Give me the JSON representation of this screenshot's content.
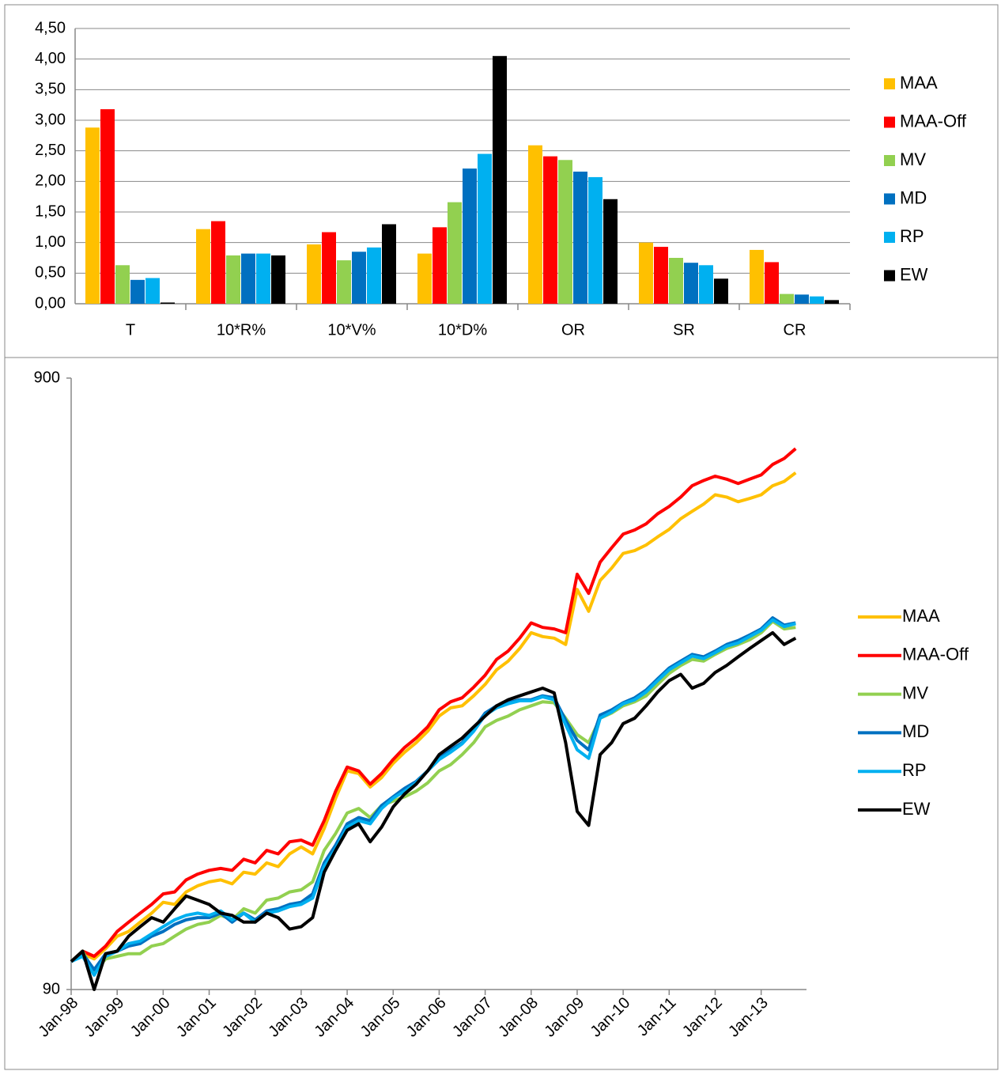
{
  "chart_data": [
    {
      "type": "bar",
      "categories": [
        "T",
        "10*R%",
        "10*V%",
        "10*D%",
        "OR",
        "SR",
        "CR"
      ],
      "series": [
        {
          "name": "MAA",
          "color": "#ffc000",
          "values": [
            2.88,
            1.22,
            0.97,
            0.82,
            2.59,
            1.0,
            0.88
          ]
        },
        {
          "name": "MAA-Off",
          "color": "#ff0000",
          "values": [
            3.18,
            1.35,
            1.17,
            1.25,
            2.41,
            0.93,
            0.68
          ]
        },
        {
          "name": "MV",
          "color": "#92d050",
          "values": [
            0.63,
            0.79,
            0.71,
            1.66,
            2.35,
            0.75,
            0.16
          ]
        },
        {
          "name": "MD",
          "color": "#0070c0",
          "values": [
            0.39,
            0.82,
            0.85,
            2.21,
            2.16,
            0.67,
            0.15
          ]
        },
        {
          "name": "RP",
          "color": "#00b0f0",
          "values": [
            0.42,
            0.82,
            0.92,
            2.45,
            2.07,
            0.63,
            0.12
          ]
        },
        {
          "name": "EW",
          "color": "#000000",
          "values": [
            0.02,
            0.79,
            1.3,
            4.05,
            1.71,
            0.41,
            0.06
          ]
        }
      ],
      "ylim": [
        0,
        4.5
      ],
      "yticks": [
        {
          "value": 0,
          "label": "0,00"
        },
        {
          "value": 0.5,
          "label": "0,50"
        },
        {
          "value": 1,
          "label": "1,00"
        },
        {
          "value": 1.5,
          "label": "1,50"
        },
        {
          "value": 2,
          "label": "2,00"
        },
        {
          "value": 2.5,
          "label": "2,50"
        },
        {
          "value": 3,
          "label": "3,00"
        },
        {
          "value": 3.5,
          "label": "3,50"
        },
        {
          "value": 4,
          "label": "4,00"
        },
        {
          "value": 4.5,
          "label": "4,50"
        }
      ],
      "grid": true,
      "legend": "right"
    },
    {
      "type": "line",
      "x": [
        "1998-01",
        "1998-04",
        "1998-07",
        "1998-10",
        "1999-01",
        "1999-04",
        "1999-07",
        "1999-10",
        "2000-01",
        "2000-04",
        "2000-07",
        "2000-10",
        "2001-01",
        "2001-04",
        "2001-07",
        "2001-10",
        "2002-01",
        "2002-04",
        "2002-07",
        "2002-10",
        "2003-01",
        "2003-04",
        "2003-07",
        "2003-10",
        "2004-01",
        "2004-04",
        "2004-07",
        "2004-10",
        "2005-01",
        "2005-04",
        "2005-07",
        "2005-10",
        "2006-01",
        "2006-04",
        "2006-07",
        "2006-10",
        "2007-01",
        "2007-04",
        "2007-07",
        "2007-10",
        "2008-01",
        "2008-04",
        "2008-07",
        "2008-10",
        "2009-01",
        "2009-04",
        "2009-07",
        "2009-10",
        "2010-01",
        "2010-04",
        "2010-07",
        "2010-10",
        "2011-01",
        "2011-04",
        "2011-07",
        "2011-10",
        "2012-01",
        "2012-04",
        "2012-07",
        "2012-10",
        "2013-01",
        "2013-04",
        "2013-07",
        "2013-10"
      ],
      "series": [
        {
          "name": "MAA",
          "color": "#ffc000",
          "values": [
            100,
            103,
            101,
            105,
            110,
            112,
            116,
            120,
            125,
            124,
            130,
            133,
            135,
            136,
            134,
            140,
            139,
            145,
            143,
            150,
            154,
            150,
            165,
            185,
            205,
            203,
            193,
            200,
            211,
            220,
            228,
            238,
            252,
            260,
            262,
            272,
            284,
            300,
            310,
            325,
            345,
            340,
            338,
            330,
            406,
            374,
            420,
            440,
            465,
            470,
            480,
            495,
            509,
            530,
            545,
            560,
            580,
            575,
            565,
            572,
            580,
            600,
            610,
            630
          ]
        },
        {
          "name": "MAA-Off",
          "color": "#ff0000",
          "values": [
            100,
            104,
            102,
            106,
            112,
            116,
            120,
            124,
            129,
            130,
            136,
            139,
            141,
            142,
            141,
            147,
            145,
            152,
            150,
            157,
            158,
            155,
            170,
            190,
            208,
            205,
            195,
            203,
            214,
            224,
            232,
            242,
            258,
            266,
            270,
            281,
            294,
            312,
            322,
            338,
            358,
            352,
            350,
            345,
            430,
            400,
            450,
            475,
            500,
            508,
            520,
            540,
            555,
            575,
            600,
            612,
            622,
            615,
            605,
            615,
            625,
            650,
            665,
            690
          ]
        },
        {
          "name": "MV",
          "color": "#92d050",
          "values": [
            100,
            104,
            96,
            101,
            102,
            103,
            103,
            106,
            107,
            110,
            113,
            115,
            116,
            119,
            117,
            122,
            120,
            126,
            127,
            130,
            131,
            135,
            152,
            162,
            175,
            178,
            172,
            180,
            183,
            186,
            190,
            196,
            205,
            210,
            218,
            228,
            242,
            248,
            252,
            258,
            262,
            266,
            265,
            250,
            235,
            228,
            250,
            255,
            262,
            266,
            272,
            284,
            296,
            305,
            312,
            310,
            318,
            325,
            330,
            336,
            345,
            360,
            350,
            352
          ]
        },
        {
          "name": "MD",
          "color": "#0070c0",
          "values": [
            100,
            103,
            97,
            103,
            104,
            106,
            107,
            110,
            112,
            115,
            117,
            118,
            118,
            120,
            116,
            120,
            117,
            121,
            122,
            124,
            125,
            129,
            145,
            155,
            168,
            172,
            170,
            180,
            186,
            192,
            197,
            205,
            215,
            222,
            228,
            240,
            255,
            262,
            265,
            268,
            268,
            272,
            270,
            248,
            230,
            222,
            253,
            258,
            265,
            270,
            278,
            290,
            302,
            310,
            318,
            315,
            322,
            330,
            335,
            342,
            350,
            365,
            355,
            358
          ]
        },
        {
          "name": "RP",
          "color": "#00b0f0",
          "values": [
            100,
            102,
            95,
            102,
            104,
            107,
            108,
            111,
            114,
            117,
            119,
            120,
            119,
            121,
            117,
            120,
            116,
            120,
            121,
            123,
            124,
            127,
            143,
            153,
            166,
            170,
            168,
            178,
            185,
            190,
            196,
            205,
            214,
            220,
            227,
            238,
            253,
            260,
            264,
            267,
            267,
            271,
            268,
            244,
            222,
            215,
            250,
            256,
            264,
            268,
            276,
            288,
            300,
            308,
            316,
            313,
            320,
            328,
            332,
            340,
            348,
            362,
            353,
            357
          ]
        },
        {
          "name": "EW",
          "color": "#000000",
          "values": [
            100,
            104,
            90,
            103,
            104,
            110,
            114,
            118,
            116,
            122,
            128,
            126,
            124,
            120,
            119,
            116,
            116,
            120,
            118,
            113,
            114,
            118,
            140,
            152,
            164,
            168,
            157,
            166,
            179,
            188,
            195,
            205,
            218,
            225,
            232,
            242,
            252,
            262,
            268,
            272,
            276,
            280,
            275,
            228,
            176,
            167,
            218,
            228,
            245,
            250,
            262,
            276,
            288,
            295,
            280,
            285,
            297,
            305,
            315,
            325,
            335,
            345,
            330,
            338
          ]
        }
      ],
      "xlim": [
        "1998-01",
        "2013-12"
      ],
      "xticks": [
        {
          "value": "1998-01",
          "label": "Jan-98"
        },
        {
          "value": "1999-01",
          "label": "Jan-99"
        },
        {
          "value": "2000-01",
          "label": "Jan-00"
        },
        {
          "value": "2001-01",
          "label": "Jan-01"
        },
        {
          "value": "2002-01",
          "label": "Jan-02"
        },
        {
          "value": "2003-01",
          "label": "Jan-03"
        },
        {
          "value": "2004-01",
          "label": "Jan-04"
        },
        {
          "value": "2005-01",
          "label": "Jan-05"
        },
        {
          "value": "2006-01",
          "label": "Jan-06"
        },
        {
          "value": "2007-01",
          "label": "Jan-07"
        },
        {
          "value": "2008-01",
          "label": "Jan-08"
        },
        {
          "value": "2009-01",
          "label": "Jan-09"
        },
        {
          "value": "2010-01",
          "label": "Jan-10"
        },
        {
          "value": "2011-01",
          "label": "Jan-11"
        },
        {
          "value": "2012-01",
          "label": "Jan-12"
        },
        {
          "value": "2013-01",
          "label": "Jan-13"
        }
      ],
      "ylim": [
        90,
        900
      ],
      "yticks": [
        90,
        900
      ],
      "log_scale": true,
      "grid": false,
      "legend": "right"
    }
  ]
}
